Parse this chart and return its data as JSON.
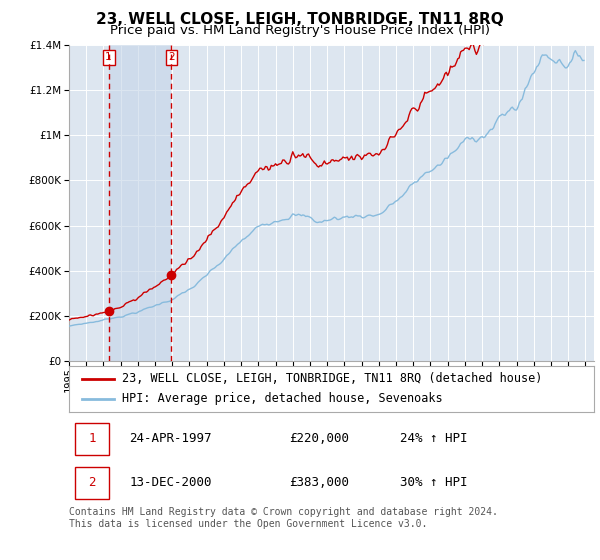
{
  "title": "23, WELL CLOSE, LEIGH, TONBRIDGE, TN11 8RQ",
  "subtitle": "Price paid vs. HM Land Registry's House Price Index (HPI)",
  "legend_line1": "23, WELL CLOSE, LEIGH, TONBRIDGE, TN11 8RQ (detached house)",
  "legend_line2": "HPI: Average price, detached house, Sevenoaks",
  "footnote": "Contains HM Land Registry data © Crown copyright and database right 2024.\nThis data is licensed under the Open Government Licence v3.0.",
  "sale1_date": "24-APR-1997",
  "sale1_price": "£220,000",
  "sale1_hpi": "24% ↑ HPI",
  "sale2_date": "13-DEC-2000",
  "sale2_price": "£383,000",
  "sale2_hpi": "30% ↑ HPI",
  "sale1_year": 1997.3,
  "sale1_value": 220000,
  "sale2_year": 2000.95,
  "sale2_value": 383000,
  "ylim": [
    0,
    1400000
  ],
  "yticks": [
    0,
    200000,
    400000,
    600000,
    800000,
    1000000,
    1200000,
    1400000
  ],
  "xlim_start": 1995,
  "xlim_end": 2025.5,
  "background_color": "#ffffff",
  "plot_bg_color": "#dde6f0",
  "grid_color": "#ffffff",
  "red_line_color": "#cc0000",
  "blue_line_color": "#88bbdd",
  "sale_dot_color": "#cc0000",
  "vline_color": "#cc0000",
  "span_color": "#c5d5e8",
  "number_box_color": "#cc0000",
  "title_fontsize": 11,
  "subtitle_fontsize": 9.5,
  "tick_fontsize": 7.5,
  "legend_fontsize": 8.5,
  "table_fontsize": 9,
  "footnote_fontsize": 7
}
